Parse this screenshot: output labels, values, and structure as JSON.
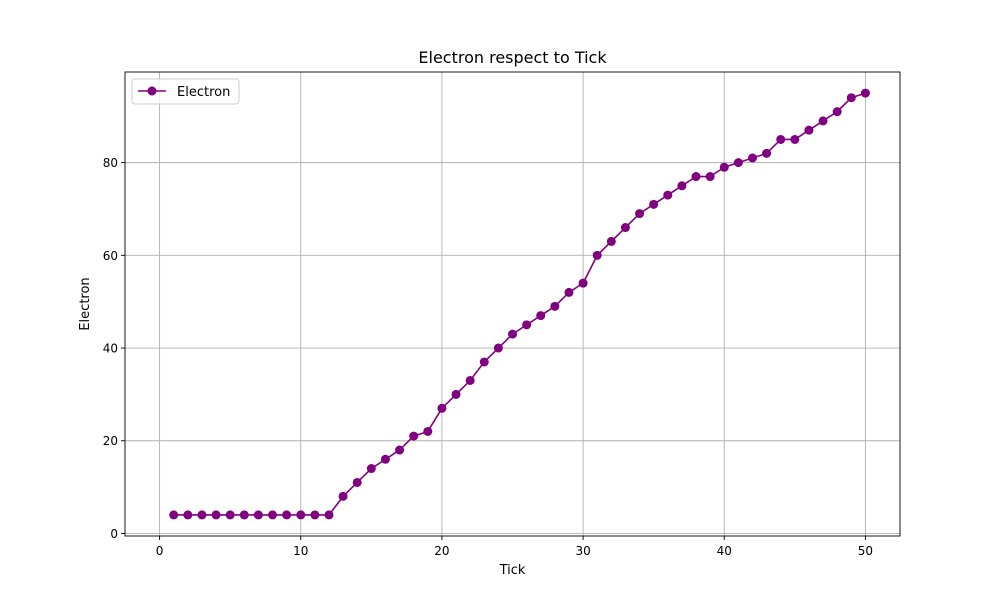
{
  "chart_data": {
    "type": "line",
    "title": "Electron respect to Tick",
    "xlabel": "Tick",
    "ylabel": "Electron",
    "xlim": [
      -2.45,
      52.45
    ],
    "ylim": [
      -0.55,
      99.55
    ],
    "x_ticks": [
      0,
      10,
      20,
      30,
      40,
      50
    ],
    "y_ticks": [
      0,
      20,
      40,
      60,
      80
    ],
    "grid": true,
    "legend_position": "upper-left",
    "series": [
      {
        "name": "Electron",
        "color": "#800080",
        "marker": "circle",
        "x": [
          1,
          2,
          3,
          4,
          5,
          6,
          7,
          8,
          9,
          10,
          11,
          12,
          13,
          14,
          15,
          16,
          17,
          18,
          19,
          20,
          21,
          22,
          23,
          24,
          25,
          26,
          27,
          28,
          29,
          30,
          31,
          32,
          33,
          34,
          35,
          36,
          37,
          38,
          39,
          40,
          41,
          42,
          43,
          44,
          45,
          46,
          47,
          48,
          49,
          50
        ],
        "y": [
          4,
          4,
          4,
          4,
          4,
          4,
          4,
          4,
          4,
          4,
          4,
          4,
          8,
          11,
          14,
          16,
          18,
          21,
          22,
          27,
          30,
          33,
          37,
          40,
          43,
          45,
          47,
          49,
          52,
          54,
          60,
          63,
          66,
          69,
          71,
          73,
          75,
          77,
          77,
          79,
          80,
          81,
          82,
          85,
          85,
          87,
          89,
          91,
          94,
          95
        ]
      }
    ]
  }
}
